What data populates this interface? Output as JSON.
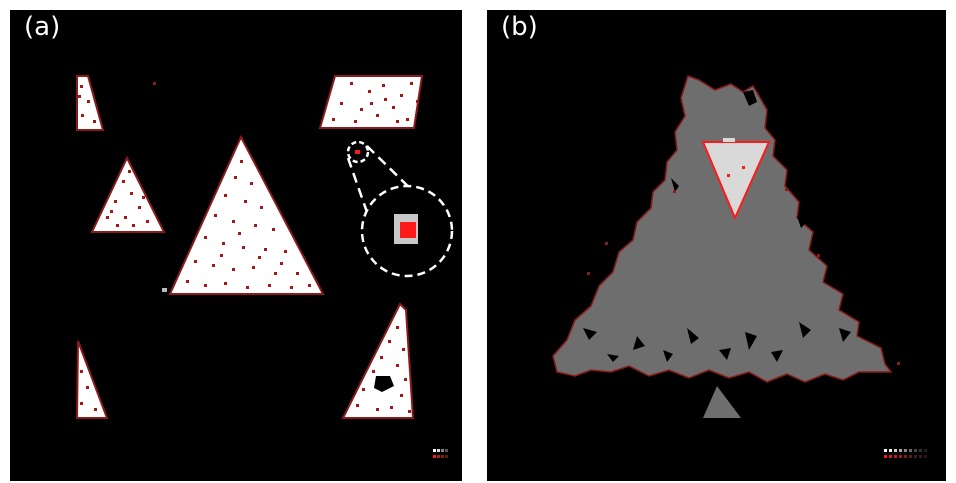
{
  "panels": [
    {
      "id": "a",
      "label": "(a)"
    },
    {
      "id": "b",
      "label": "(b)"
    }
  ],
  "colors": {
    "background": "#000000",
    "shape_fill": "#ffffff",
    "shape_edge": "#8b1a1a",
    "defect_red": "#ff1a1a",
    "gray_region": "#6e6e6e",
    "light_gray": "#d9d9d9",
    "callout": "#ffffff"
  },
  "icons": [
    "zoom-callout",
    "color-legend-swatches"
  ]
}
